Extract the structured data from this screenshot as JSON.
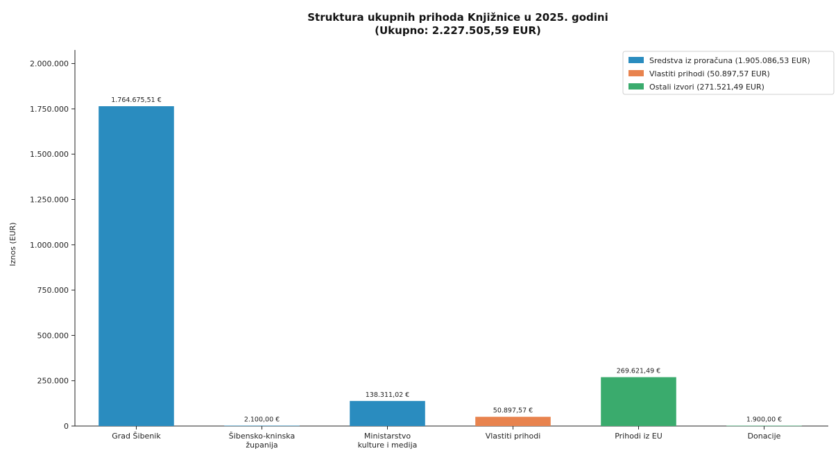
{
  "chart_data": {
    "type": "bar",
    "title": "Struktura ukupnih prihoda Knjižnice u 2025. godini",
    "subtitle": "(Ukupno: 2.227.505,59 EUR)",
    "ylabel": "Iznos (EUR)",
    "xlabel": "",
    "ylim": [
      0,
      2075000
    ],
    "yticks": [
      0,
      250000,
      500000,
      750000,
      1000000,
      1250000,
      1500000,
      1750000,
      2000000
    ],
    "ytick_labels": [
      "0",
      "250.000",
      "500.000",
      "750.000",
      "1.000.000",
      "1.250.000",
      "1.500.000",
      "1.750.000",
      "2.000.000"
    ],
    "categories": [
      [
        "Grad Šibenik"
      ],
      [
        "Šibensko-kninska",
        "županija"
      ],
      [
        "Ministarstvo",
        "kulture i medija"
      ],
      [
        "Vlastiti prihodi"
      ],
      [
        "Prihodi iz EU"
      ],
      [
        "Donacije"
      ]
    ],
    "values": [
      1764675.51,
      2100.0,
      138311.02,
      50897.57,
      269621.49,
      1900.0
    ],
    "value_labels": [
      "1.764.675,51 €",
      "2.100,00 €",
      "138.311,02 €",
      "50.897,57 €",
      "269.621,49 €",
      "1.900,00 €"
    ],
    "bar_groups": [
      0,
      0,
      0,
      1,
      2,
      2
    ],
    "legend": {
      "placement": "top-right",
      "entries": [
        {
          "label": "Sredstva iz proračuna (1.905.086,53 EUR)",
          "color": "#2a8cbf"
        },
        {
          "label": "Vlastiti prihodi (50.897,57 EUR)",
          "color": "#e8834e"
        },
        {
          "label": "Ostali izvori (271.521,49 EUR)",
          "color": "#3aab6d"
        }
      ]
    },
    "grid": false
  }
}
